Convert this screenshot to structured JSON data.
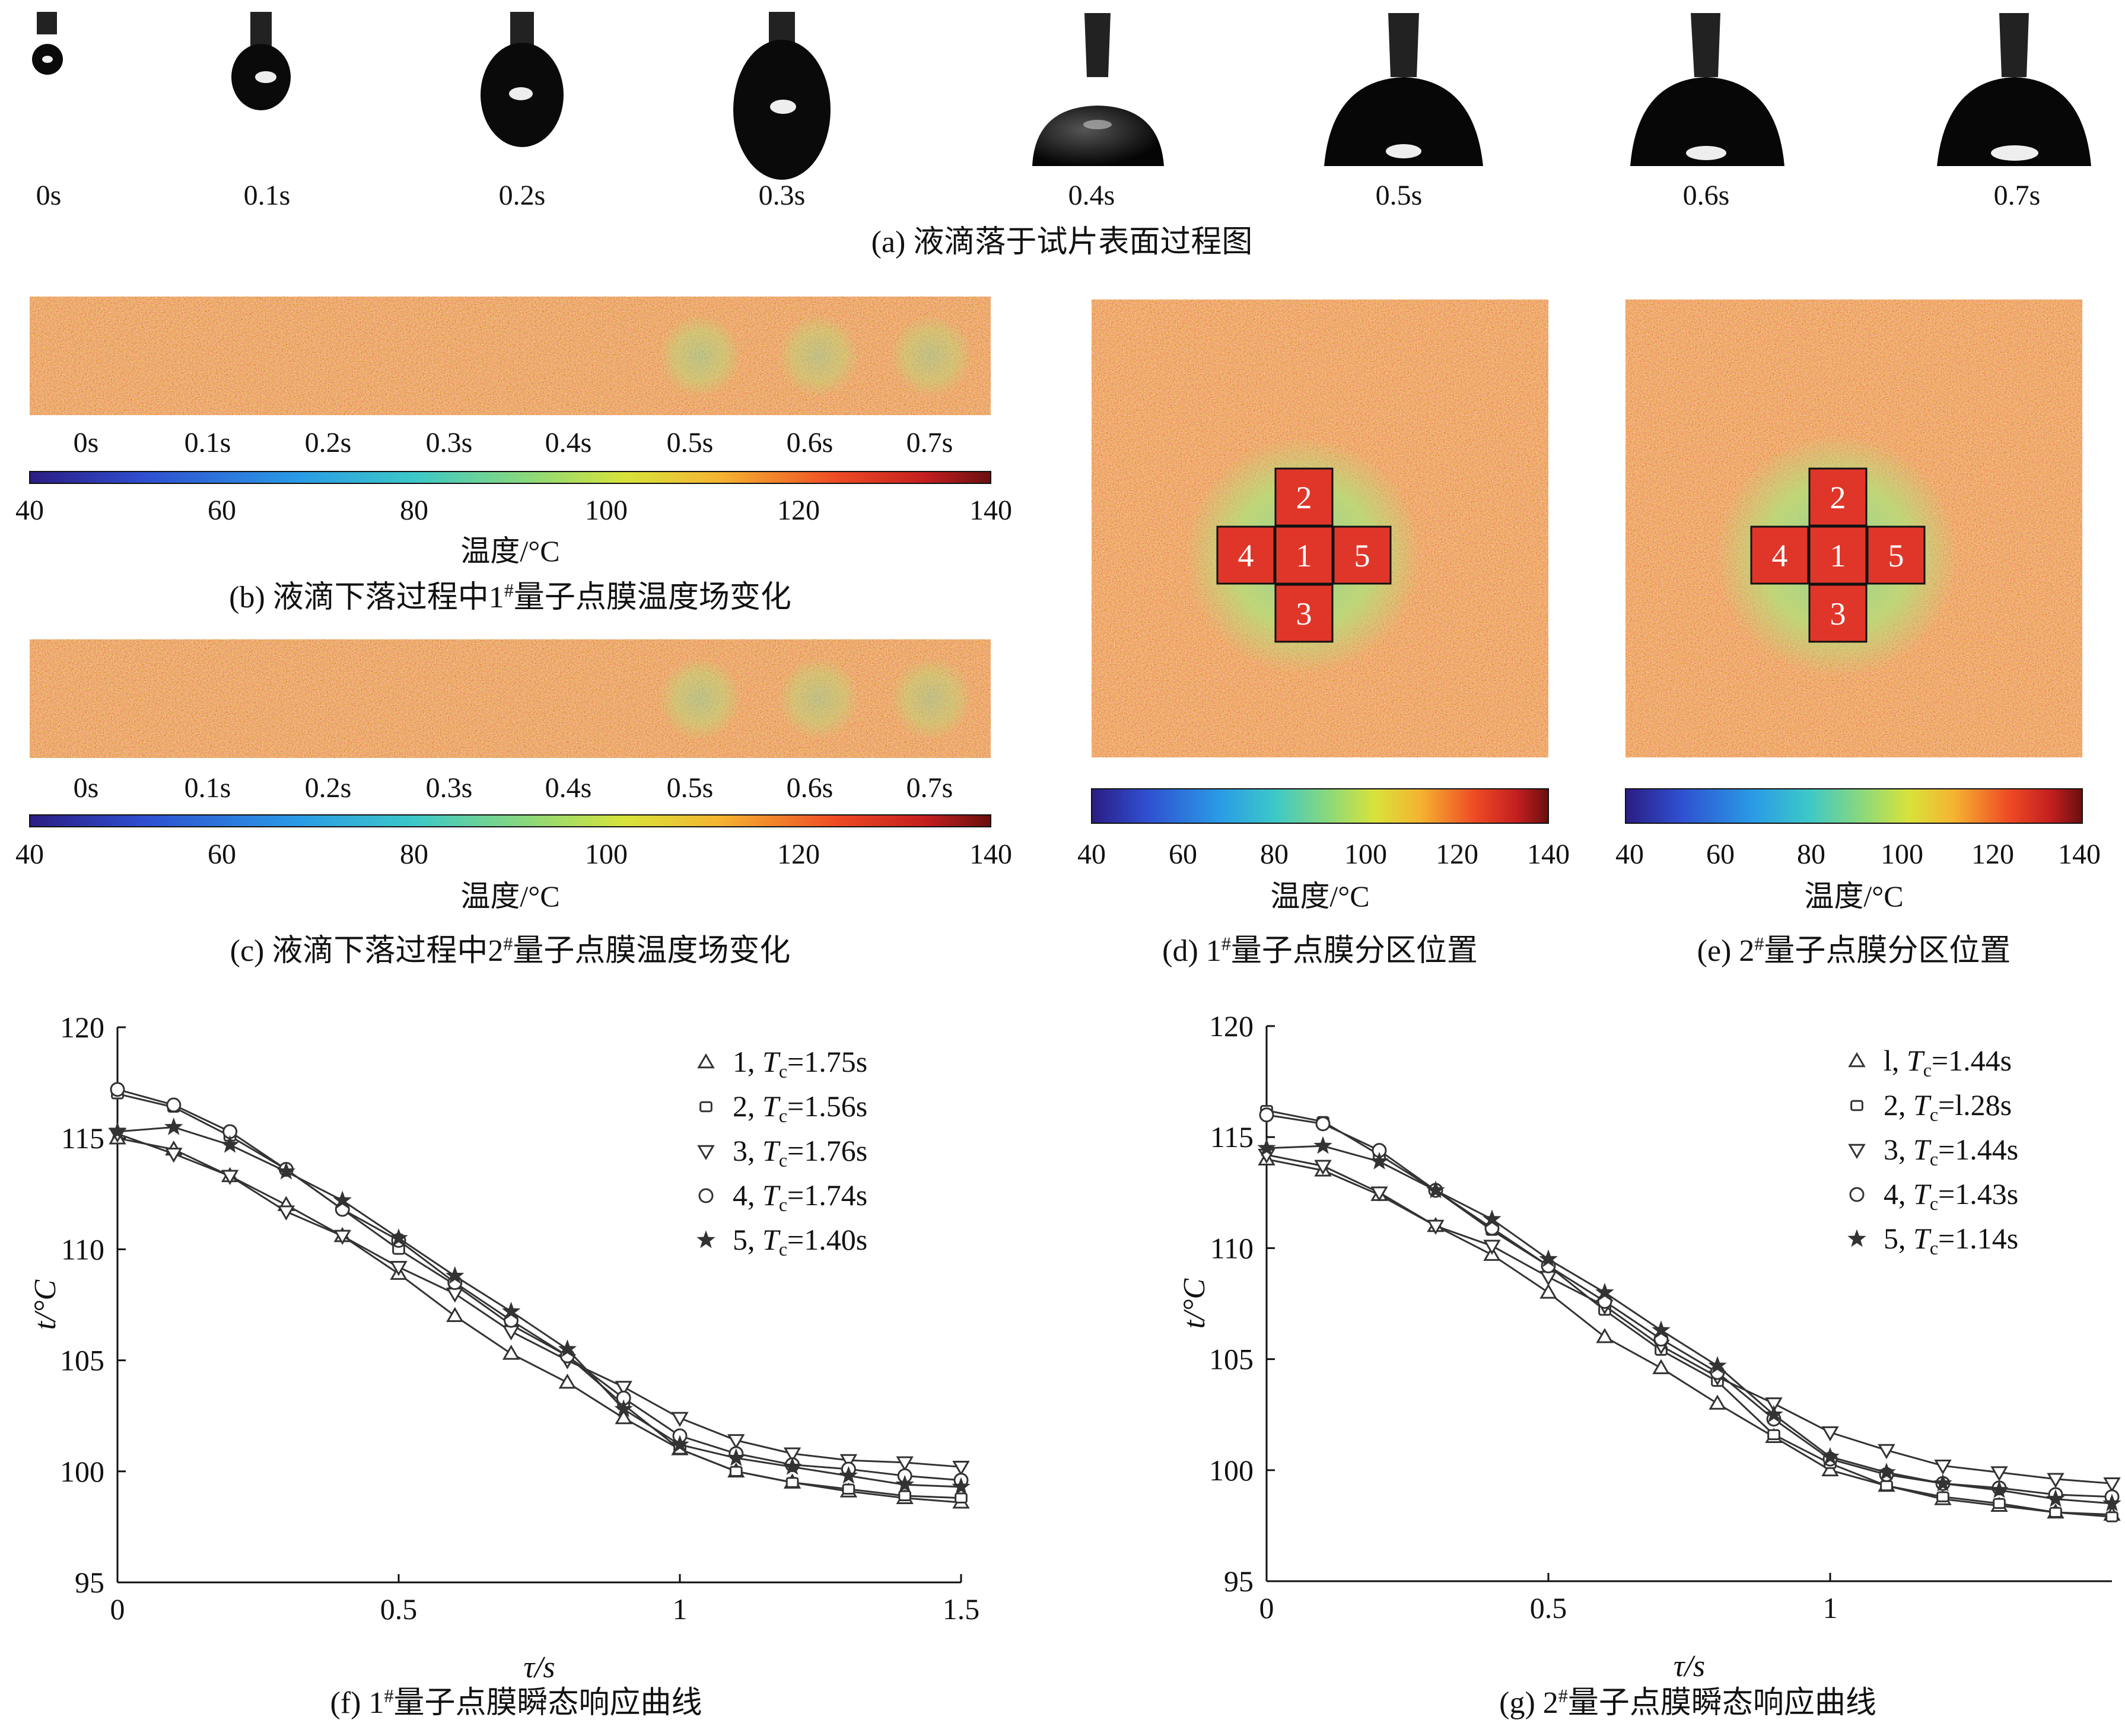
{
  "panel_a": {
    "caption": "(a) 液滴落于试片表面过程图",
    "times": [
      "0s",
      "0.1s",
      "0.2s",
      "0.3s",
      "0.4s",
      "0.5s",
      "0.6s",
      "0.7s"
    ]
  },
  "panel_b": {
    "caption_pre": "(b) 液滴下落过程中1",
    "caption_sup": "#",
    "caption_post": "量子点膜温度场变化",
    "times": [
      "0s",
      "0.1s",
      "0.2s",
      "0.3s",
      "0.4s",
      "0.5s",
      "0.6s",
      "0.7s"
    ],
    "colorbar_ticks": [
      "40",
      "60",
      "80",
      "100",
      "120",
      "140"
    ],
    "colorbar_label": "温度/°C"
  },
  "panel_c": {
    "caption_pre": "(c) 液滴下落过程中2",
    "caption_sup": "#",
    "caption_post": "量子点膜温度场变化",
    "times": [
      "0s",
      "0.1s",
      "0.2s",
      "0.3s",
      "0.4s",
      "0.5s",
      "0.6s",
      "0.7s"
    ],
    "colorbar_ticks": [
      "40",
      "60",
      "80",
      "100",
      "120",
      "140"
    ],
    "colorbar_label": "温度/°C"
  },
  "panel_d": {
    "caption_pre": "(d) 1",
    "caption_sup": "#",
    "caption_post": "量子点膜分区位置",
    "zones": [
      "1",
      "2",
      "3",
      "4",
      "5"
    ],
    "colorbar_ticks": [
      "40",
      "60",
      "80",
      "100",
      "120",
      "140"
    ],
    "colorbar_label": "温度/°C"
  },
  "panel_e": {
    "caption_pre": "(e) 2",
    "caption_sup": "#",
    "caption_post": "量子点膜分区位置",
    "zones": [
      "1",
      "2",
      "3",
      "4",
      "5"
    ],
    "colorbar_ticks": [
      "40",
      "60",
      "80",
      "100",
      "120",
      "140"
    ],
    "colorbar_label": "温度/°C"
  },
  "colormap": [
    "#2b1c83",
    "#2f4fd0",
    "#2a8fe6",
    "#3cc0d6",
    "#8cd97a",
    "#d8e33a",
    "#f5b331",
    "#ee5a24",
    "#c51f1f",
    "#7a1010"
  ],
  "chart_data": [
    {
      "type": "line",
      "panel": "f",
      "caption_pre": "(f) 1",
      "caption_sup": "#",
      "caption_post": "量子点膜瞬态响应曲线",
      "xlabel": "τ/s",
      "ylabel": "t/°C",
      "xlim": [
        0,
        1.5
      ],
      "ylim": [
        95,
        120
      ],
      "xticks": [
        "0",
        "0.5",
        "1",
        "1.5"
      ],
      "yticks": [
        "95",
        "100",
        "105",
        "110",
        "115",
        "120"
      ],
      "x": [
        0,
        0.1,
        0.2,
        0.3,
        0.4,
        0.5,
        0.6,
        0.7,
        0.8,
        0.9,
        1.0,
        1.1,
        1.2,
        1.3,
        1.4,
        1.5
      ],
      "series": [
        {
          "name": "1",
          "tc": "1.75s",
          "marker": "triangle-up",
          "values": [
            115.0,
            114.5,
            113.3,
            112.0,
            110.6,
            108.9,
            107.0,
            105.3,
            104.0,
            102.4,
            101.0,
            100.0,
            99.5,
            99.1,
            98.8,
            98.6
          ]
        },
        {
          "name": "2",
          "tc": "1.56s",
          "marker": "square",
          "values": [
            117.0,
            116.4,
            115.1,
            113.6,
            111.8,
            110.0,
            108.4,
            106.6,
            105.2,
            103.0,
            101.0,
            100.0,
            99.5,
            99.2,
            98.9,
            98.8
          ]
        },
        {
          "name": "3",
          "tc": "1.76s",
          "marker": "triangle-down",
          "values": [
            115.2,
            114.3,
            113.3,
            111.7,
            110.6,
            109.2,
            108.0,
            106.3,
            105.0,
            103.8,
            102.4,
            101.4,
            100.8,
            100.5,
            100.4,
            100.2
          ]
        },
        {
          "name": "4",
          "tc": "1.74s",
          "marker": "circle",
          "values": [
            117.2,
            116.5,
            115.3,
            113.6,
            111.8,
            110.4,
            108.5,
            106.8,
            105.2,
            103.3,
            101.6,
            100.8,
            100.3,
            100.1,
            99.8,
            99.6
          ]
        },
        {
          "name": "5",
          "tc": "1.40s",
          "marker": "star",
          "values": [
            115.3,
            115.5,
            114.7,
            113.5,
            112.2,
            110.5,
            108.8,
            107.2,
            105.5,
            102.8,
            101.2,
            100.6,
            100.2,
            99.8,
            99.4,
            99.3
          ]
        }
      ]
    },
    {
      "type": "line",
      "panel": "g",
      "caption_pre": "(g) 2",
      "caption_sup": "#",
      "caption_post": "量子点膜瞬态响应曲线",
      "xlabel": "τ/s",
      "ylabel": "t/°C",
      "xlim": [
        0,
        1.5
      ],
      "ylim": [
        95,
        120
      ],
      "xticks": [
        "0",
        "0.5",
        "1"
      ],
      "yticks": [
        "95",
        "100",
        "105",
        "110",
        "115",
        "120"
      ],
      "x": [
        0,
        0.1,
        0.2,
        0.3,
        0.4,
        0.5,
        0.6,
        0.7,
        0.8,
        0.9,
        1.0,
        1.1,
        1.2,
        1.3,
        1.4,
        1.5
      ],
      "series": [
        {
          "name": "l",
          "tc": "1.44s",
          "marker": "triangle-up",
          "values": [
            114.0,
            113.5,
            112.4,
            111.0,
            109.7,
            108.0,
            106.0,
            104.6,
            103.0,
            101.5,
            100.0,
            99.3,
            98.7,
            98.4,
            98.1,
            98.0
          ]
        },
        {
          "name": "2",
          "tc": "l.28s",
          "marker": "square",
          "values": [
            116.2,
            115.7,
            114.2,
            112.6,
            110.8,
            109.2,
            107.2,
            105.4,
            104.0,
            101.6,
            100.3,
            99.3,
            98.8,
            98.5,
            98.1,
            97.9
          ]
        },
        {
          "name": "3",
          "tc": "1.44s",
          "marker": "triangle-down",
          "values": [
            114.2,
            113.7,
            112.5,
            111.0,
            110.1,
            108.7,
            107.4,
            105.6,
            104.2,
            103.0,
            101.7,
            100.9,
            100.2,
            99.9,
            99.6,
            99.4
          ]
        },
        {
          "name": "4",
          "tc": "1.43s",
          "marker": "circle",
          "values": [
            116.0,
            115.6,
            114.4,
            112.6,
            110.9,
            109.2,
            107.6,
            105.9,
            104.4,
            102.3,
            100.5,
            99.8,
            99.4,
            99.2,
            98.9,
            98.8
          ]
        },
        {
          "name": "5",
          "tc": "1.14s",
          "marker": "star",
          "values": [
            114.5,
            114.6,
            113.9,
            112.6,
            111.3,
            109.5,
            108.0,
            106.3,
            104.7,
            102.5,
            100.6,
            99.9,
            99.4,
            99.1,
            98.7,
            98.5
          ]
        }
      ]
    }
  ]
}
